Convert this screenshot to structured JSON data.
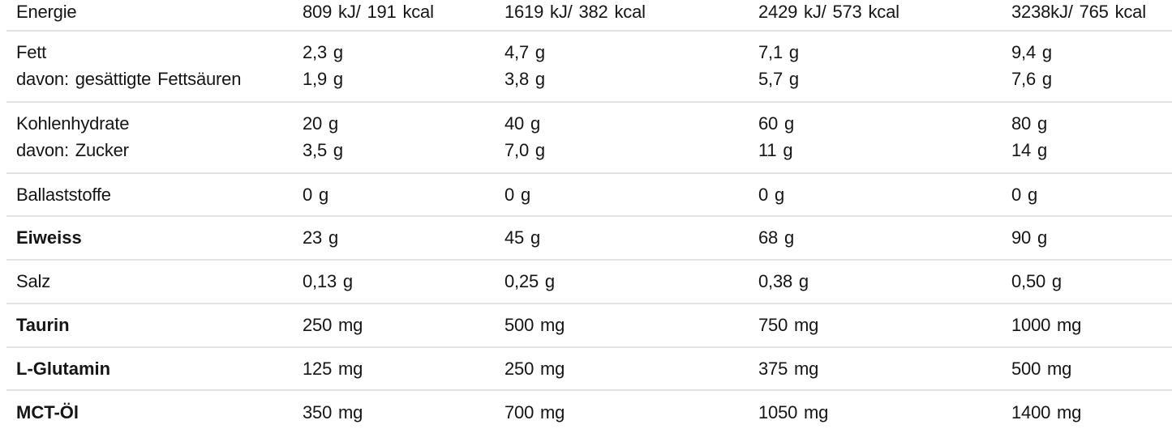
{
  "colors": {
    "text": "#151515",
    "divider": "#e3e3e3",
    "background": "#ffffff"
  },
  "table": {
    "rows": [
      {
        "label": "Energie",
        "bold": false,
        "values": [
          "809 kJ/ 191 kcal",
          "1619 kJ/ 382 kcal",
          "2429 kJ/ 573 kcal",
          "3238kJ/ 765 kcal"
        ]
      },
      {
        "label": "Fett",
        "bold": false,
        "values": [
          "2,3 g",
          "4,7 g",
          "7,1 g",
          "9,4 g"
        ]
      },
      {
        "label": "davon: gesättigte Fettsäuren",
        "bold": false,
        "values": [
          "1,9 g",
          "3,8 g",
          "5,7 g",
          "7,6 g"
        ]
      },
      {
        "label": "Kohlenhydrate",
        "bold": false,
        "values": [
          "20 g",
          "40 g",
          "60 g",
          "80 g"
        ]
      },
      {
        "label": "davon: Zucker",
        "bold": false,
        "values": [
          "3,5 g",
          "7,0 g",
          "11 g",
          "14 g"
        ]
      },
      {
        "label": "Ballaststoffe",
        "bold": false,
        "values": [
          "0 g",
          "0 g",
          "0 g",
          "0 g"
        ]
      },
      {
        "label": "Eiweiss",
        "bold": true,
        "values": [
          "23 g",
          "45 g",
          "68 g",
          "90 g"
        ]
      },
      {
        "label": "Salz",
        "bold": false,
        "values": [
          "0,13 g",
          "0,25 g",
          "0,38 g",
          "0,50 g"
        ]
      },
      {
        "label": "Taurin",
        "bold": true,
        "values": [
          "250 mg",
          "500 mg",
          "750 mg",
          "1000 mg"
        ]
      },
      {
        "label": "L-Glutamin",
        "bold": true,
        "values": [
          "125 mg",
          "250 mg",
          "375 mg",
          "500 mg"
        ]
      },
      {
        "label": "MCT-Öl",
        "bold": true,
        "values": [
          "350 mg",
          "700 mg",
          "1050 mg",
          "1400 mg"
        ]
      }
    ]
  }
}
